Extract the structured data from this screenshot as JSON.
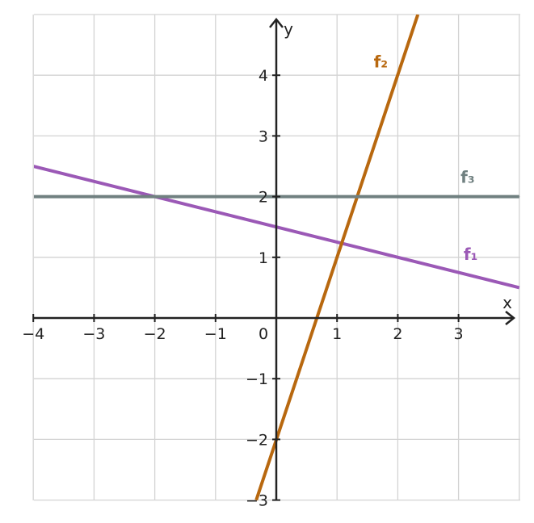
{
  "chart_data": {
    "type": "line",
    "xlabel": "x",
    "ylabel": "y",
    "xlim": [
      -4,
      4
    ],
    "ylim": [
      -3,
      5
    ],
    "grid": true,
    "x_ticks": [
      -4,
      -3,
      -2,
      -1,
      0,
      1,
      2,
      3
    ],
    "y_ticks": [
      -3,
      -2,
      -1,
      1,
      2,
      3,
      4
    ],
    "x_tick_labels": [
      "−4",
      "−3",
      "−2",
      "−1",
      "0",
      "1",
      "2",
      "3"
    ],
    "y_tick_labels": [
      "−3",
      "−2",
      "−1",
      "1",
      "2",
      "3",
      "4"
    ],
    "series": [
      {
        "name": "f₁",
        "color": "#9b59b6",
        "x": [
          -4,
          4
        ],
        "y": [
          2.5,
          0.5
        ]
      },
      {
        "name": "f₂",
        "color": "#b8680f",
        "x": [
          -0.33,
          2.33
        ],
        "y": [
          -3,
          5
        ]
      },
      {
        "name": "f₃",
        "color": "#708080",
        "x": [
          -4,
          4
        ],
        "y": [
          2,
          2
        ]
      }
    ],
    "series_label_positions": [
      {
        "x": 3.2,
        "y": 1.05
      },
      {
        "x": 1.72,
        "y": 4.22
      },
      {
        "x": 3.15,
        "y": 2.32
      }
    ]
  }
}
